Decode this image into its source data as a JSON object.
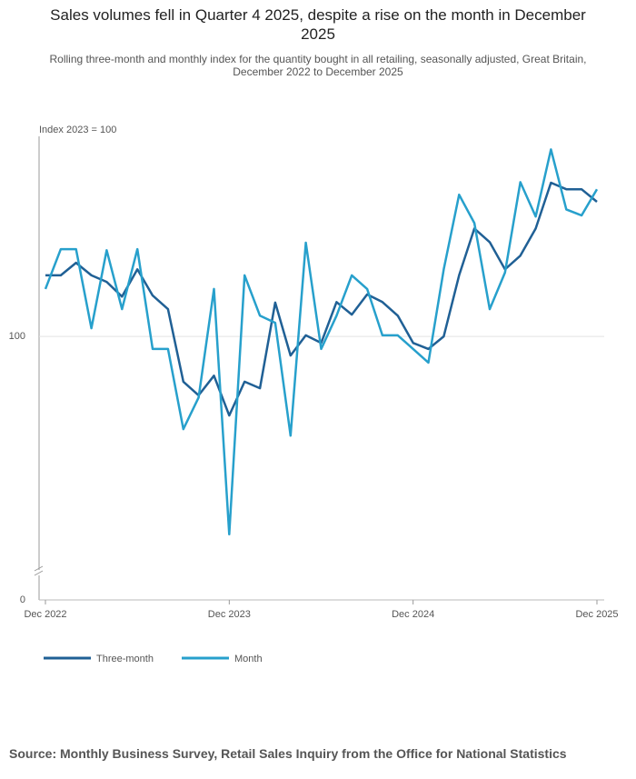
{
  "chart_data": {
    "type": "line",
    "title": "Sales volumes fell in Quarter 4 2025, despite a rise on the month in December 2025",
    "subtitle": "Rolling three-month and monthly index for the quantity bought in all retailing, seasonally adjusted, Great Britain, December 2022 to December 2025",
    "y_label": "Index 2023 = 100",
    "source": "Source: Monthly Business Survey, Retail Sales Inquiry from the Office for National Statistics",
    "categories": [
      "Dec 2022",
      null,
      null,
      null,
      null,
      null,
      null,
      null,
      null,
      null,
      null,
      null,
      "Dec 2023",
      null,
      null,
      null,
      null,
      null,
      null,
      null,
      null,
      null,
      null,
      null,
      "Dec 2024",
      null,
      null,
      null,
      null,
      null,
      null,
      null,
      null,
      null,
      null,
      null,
      "Dec 2025"
    ],
    "series": [
      {
        "name": "Three-month",
        "color": "#206095",
        "values": [
          101.12,
          101.12,
          101.35,
          101.12,
          101.0,
          100.73,
          101.23,
          100.75,
          100.5,
          99.17,
          98.92,
          99.28,
          98.55,
          99.17,
          99.05,
          100.62,
          99.65,
          100.02,
          99.88,
          100.63,
          100.4,
          100.77,
          100.63,
          100.38,
          99.88,
          99.77,
          100.0,
          101.12,
          101.98,
          101.73,
          101.23,
          101.48,
          101.98,
          102.82,
          102.7,
          102.7,
          102.47
        ]
      },
      {
        "name": "Month",
        "color": "#27a0cc",
        "values": [
          100.87,
          101.6,
          101.6,
          100.15,
          101.58,
          100.5,
          101.6,
          99.77,
          99.77,
          98.3,
          98.88,
          100.87,
          96.37,
          101.12,
          100.38,
          100.25,
          98.18,
          101.72,
          99.77,
          100.38,
          101.12,
          100.87,
          100.02,
          100.02,
          99.77,
          99.52,
          101.23,
          102.6,
          102.08,
          100.5,
          101.17,
          102.83,
          102.2,
          103.43,
          102.33,
          102.22,
          102.7
        ]
      }
    ],
    "ylim": [
      95.75,
      103.67
    ],
    "yticks": [
      0,
      100
    ],
    "axis_break": true,
    "grid": true
  }
}
